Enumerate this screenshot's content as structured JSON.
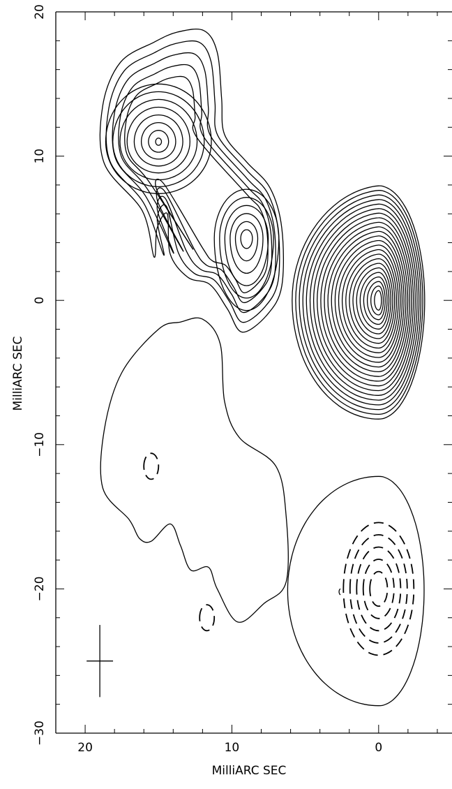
{
  "chart_data": {
    "type": "contour",
    "xlabel": "MilliARC SEC",
    "ylabel": "MilliARC SEC",
    "xlim": [
      22,
      -5
    ],
    "ylim": [
      -30,
      20
    ],
    "x_ticks": [
      {
        "value": 20,
        "label": "20"
      },
      {
        "value": 10,
        "label": "10"
      },
      {
        "value": 0,
        "label": "0"
      }
    ],
    "y_ticks": [
      {
        "value": 20,
        "label": "20"
      },
      {
        "value": 10,
        "label": "10"
      },
      {
        "value": 0,
        "label": "0"
      },
      {
        "value": -10,
        "label": "−10"
      },
      {
        "value": -20,
        "label": "−20"
      },
      {
        "value": -30,
        "label": "−30"
      }
    ],
    "total_intensity_map": {
      "core_component": {
        "peak_x": 0,
        "peak_y": 0,
        "contour_levels": 24
      },
      "jet_component_a": {
        "peak_x": 15,
        "peak_y": 11,
        "contour_levels": 13
      },
      "jet_component_b": {
        "peak_x": 9,
        "peak_y": 4.3,
        "contour_levels": 10
      }
    },
    "polarization_map": {
      "outer_contours": 2,
      "dashed_contours_near": [
        {
          "x": 0,
          "y": -20
        },
        {
          "x": 15.5,
          "y": -11.5
        },
        {
          "x": 11.7,
          "y": -22
        }
      ]
    },
    "beam": {
      "center_x": 19,
      "center_y": -25,
      "major_axis": 5,
      "minor_axis": 1.8
    }
  }
}
